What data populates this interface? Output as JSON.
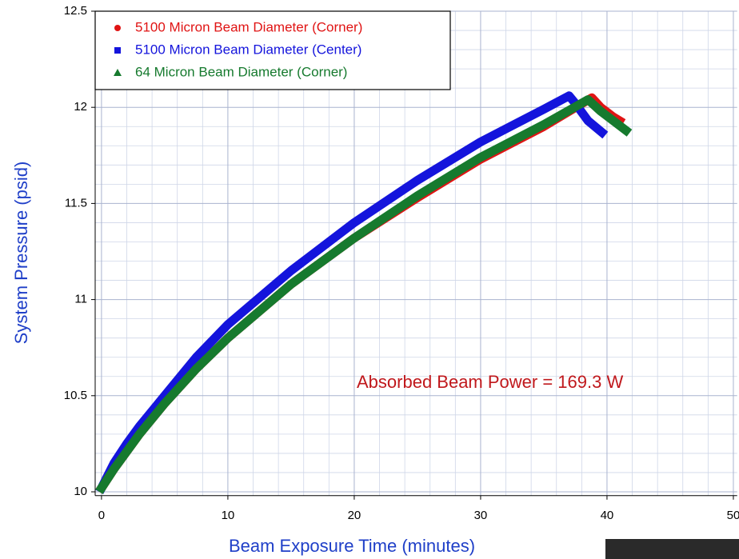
{
  "chart_data": {
    "type": "line",
    "xlabel": "Beam Exposure Time (minutes)",
    "ylabel": "System Pressure (psid)",
    "annotation": "Absorbed Beam Power = 169.3 W",
    "xlim": [
      -0.5,
      50.3
    ],
    "xticks": [
      0,
      10,
      20,
      30,
      40,
      50
    ],
    "ylim": [
      9.98,
      12.5
    ],
    "yticks": [
      10,
      10.5,
      11,
      11.5,
      12,
      12.5
    ],
    "grid": true,
    "legend": "upper left",
    "series": [
      {
        "name": "5100 Micron Beam Diameter (Corner)",
        "color": "#e01414",
        "marker": "circle",
        "x": [
          0,
          1,
          2,
          3,
          5,
          7.5,
          10,
          15,
          20,
          25,
          30,
          35,
          38.8,
          39.5,
          40.5,
          41
        ],
        "values": [
          10.02,
          10.12,
          10.21,
          10.3,
          10.46,
          10.64,
          10.8,
          11.08,
          11.32,
          11.53,
          11.73,
          11.9,
          12.05,
          12.0,
          11.95,
          11.93
        ]
      },
      {
        "name": "5100 Micron Beam Diameter (Center)",
        "color": "#1414dc",
        "marker": "square",
        "x": [
          0,
          1,
          2,
          3,
          5,
          7.5,
          10,
          15,
          20,
          25,
          30,
          35,
          37,
          37.5,
          38.5,
          39.6
        ],
        "values": [
          10.02,
          10.15,
          10.25,
          10.34,
          10.5,
          10.7,
          10.87,
          11.15,
          11.4,
          11.62,
          11.82,
          11.99,
          12.06,
          12.02,
          11.93,
          11.87
        ]
      },
      {
        "name": "64 Micron Beam Diameter (Corner)",
        "color": "#167a2e",
        "marker": "triangle",
        "x": [
          0,
          1,
          2,
          3,
          5,
          7.5,
          10,
          15,
          20,
          25,
          30,
          35,
          38.5,
          39.5,
          40.5,
          41.5
        ],
        "values": [
          10.02,
          10.12,
          10.21,
          10.3,
          10.46,
          10.64,
          10.8,
          11.08,
          11.32,
          11.54,
          11.74,
          11.91,
          12.04,
          11.98,
          11.93,
          11.88
        ]
      }
    ]
  }
}
